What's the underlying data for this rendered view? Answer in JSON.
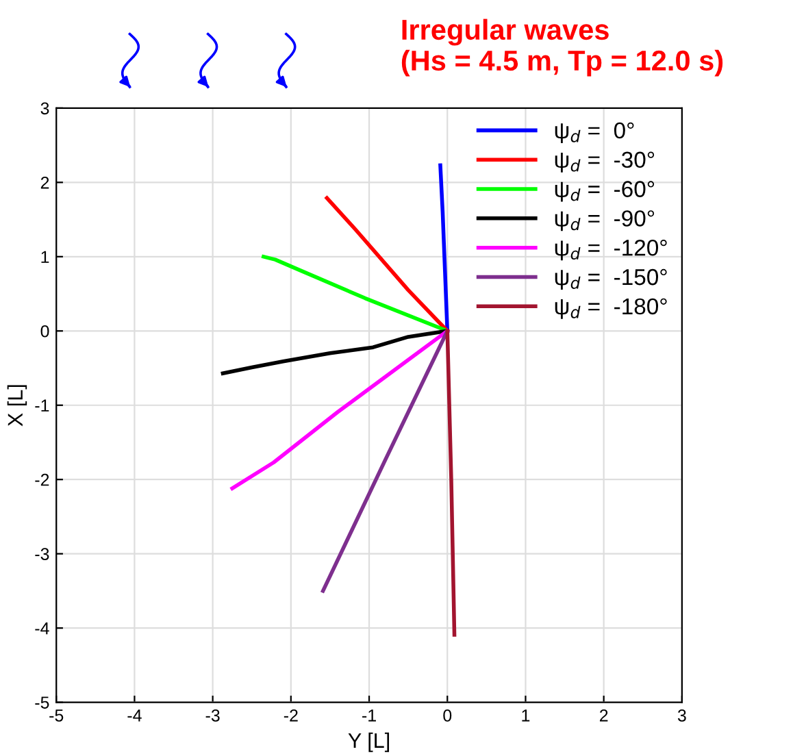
{
  "chart_data": {
    "type": "line",
    "title": "Irregular waves\n(Hs = 4.5 m, Tp = 12.0 s)",
    "xlabel": "Y [L]",
    "ylabel": "X [L]",
    "xlim": [
      -5,
      3
    ],
    "ylim": [
      -5,
      3
    ],
    "xticks": [
      -5,
      -4,
      -3,
      -2,
      -1,
      0,
      1,
      2,
      3
    ],
    "yticks": [
      -5,
      -4,
      -3,
      -2,
      -1,
      0,
      1,
      2,
      3
    ],
    "grid": true,
    "legend": "top right",
    "line_style": "solid",
    "marker": "none",
    "series": [
      {
        "name": "ψ$_{d}$ =  0°",
        "color": "#0000ff",
        "x": [
          0,
          -0.03,
          -0.06,
          -0.09
        ],
        "values": [
          0,
          0.8,
          1.6,
          2.23
        ]
      },
      {
        "name": "ψ$_{d}$ =  -30°",
        "color": "#ff0000",
        "x": [
          0,
          -0.5,
          -1.17,
          -1.54
        ],
        "values": [
          0,
          0.55,
          1.36,
          1.79
        ]
      },
      {
        "name": "ψ$_{d}$ =  -60°",
        "color": "#00ff00",
        "x": [
          0,
          -1.05,
          -1.87,
          -2.2,
          -2.35
        ],
        "values": [
          0,
          0.44,
          0.81,
          0.96,
          1.0
        ]
      },
      {
        "name": "ψ$_{d}$ =  -90°",
        "color": "#000000",
        "x": [
          0,
          -0.5,
          -0.95,
          -1.5,
          -2.1,
          -2.5,
          -2.87
        ],
        "values": [
          0,
          -0.08,
          -0.22,
          -0.3,
          -0.41,
          -0.49,
          -0.57
        ]
      },
      {
        "name": "ψ$_{d}$ =  -120°",
        "color": "#ff00ff",
        "x": [
          0,
          -1.4,
          -2.22,
          -2.75
        ],
        "values": [
          0,
          -1.09,
          -1.77,
          -2.12
        ]
      },
      {
        "name": "ψ$_{d}$ =  -150°",
        "color": "#7e2f8e",
        "x": [
          0,
          -0.8,
          -1.59
        ],
        "values": [
          0,
          -1.75,
          -3.5
        ]
      },
      {
        "name": "ψ$_{d}$ =  -180°",
        "color": "#a2142f",
        "x": [
          0,
          0.05,
          0.09
        ],
        "values": [
          0,
          -2.0,
          -4.09
        ]
      }
    ]
  }
}
